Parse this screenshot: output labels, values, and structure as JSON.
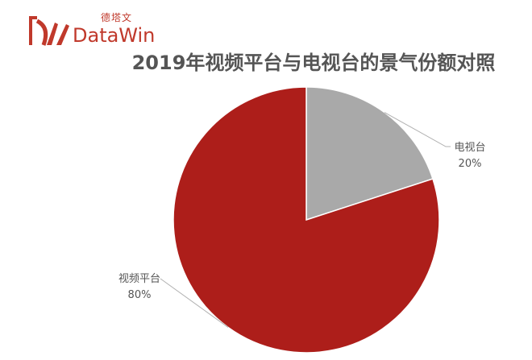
{
  "brand": {
    "cn_name": "德塔文",
    "en_name": "DataWin",
    "primary_color": "#c0392b"
  },
  "chart_data": {
    "type": "pie",
    "title": "2019年视频平台与电视台的景气份额对照",
    "slices": [
      {
        "label": "电视台",
        "value": 20,
        "pct_text": "20%",
        "color": "#a9a9a9"
      },
      {
        "label": "视频平台",
        "value": 80,
        "pct_text": "80%",
        "color": "#ad1e1a"
      }
    ],
    "start_angle_deg": 0,
    "direction": "clockwise",
    "legend": "none",
    "labels": "outside-with-leader-lines"
  }
}
